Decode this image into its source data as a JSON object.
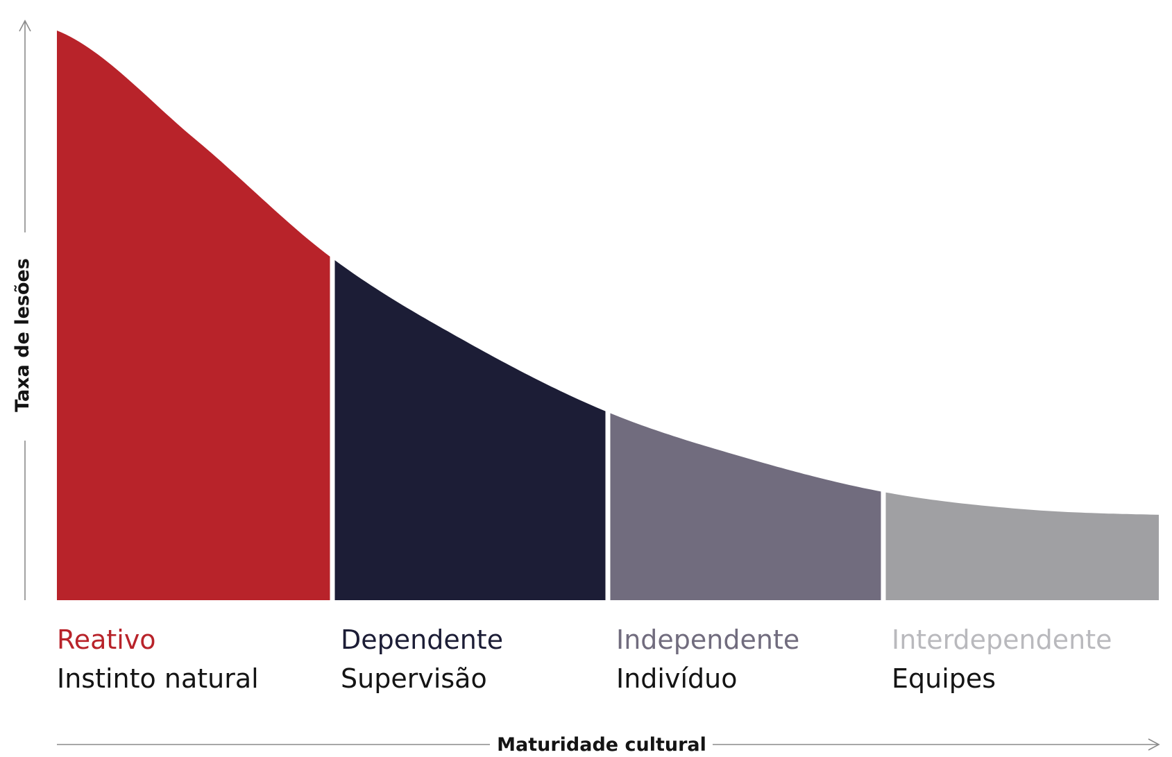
{
  "chart_data": {
    "type": "area",
    "xlabel": "Maturidade cultural",
    "ylabel": "Taxa de lesões",
    "grid": false,
    "legend": "none",
    "curve": {
      "x": [
        0,
        0.5,
        1,
        1.5,
        2,
        2.5,
        3,
        3.5,
        4
      ],
      "y": [
        100,
        81,
        60,
        45,
        33,
        25,
        19,
        16,
        15
      ]
    },
    "stages": [
      {
        "name": "Reativo",
        "description": "Instinto natural",
        "color": "#b8232a",
        "label_color": "#b8232a",
        "x_start": 0,
        "x_end": 1
      },
      {
        "name": "Dependente",
        "description": "Supervisão",
        "color": "#1c1d36",
        "label_color": "#1c1d36",
        "x_start": 1,
        "x_end": 2
      },
      {
        "name": "Independente",
        "description": "Indivíduo",
        "color": "#716c7e",
        "label_color": "#716c7e",
        "x_start": 2,
        "x_end": 3
      },
      {
        "name": "Interdependente",
        "description": "Equipes",
        "color": "#a0a0a3",
        "label_color": "#b9b9bd",
        "x_start": 3,
        "x_end": 4
      }
    ]
  }
}
